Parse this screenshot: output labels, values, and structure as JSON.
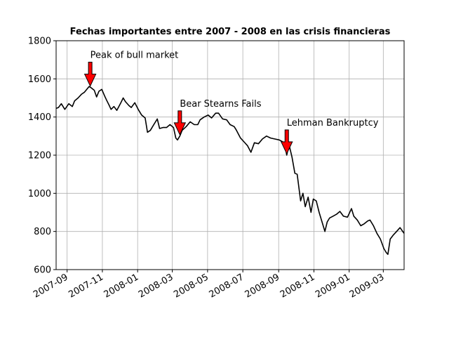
{
  "chart_data": {
    "type": "line",
    "title": "Fechas importantes entre 2007 - 2008 en las crisis financieras",
    "xlabel": "",
    "ylabel": "",
    "x_range": [
      "2007-08-13",
      "2009-04-06"
    ],
    "ylim": [
      600,
      1800
    ],
    "yticks": [
      600,
      800,
      1000,
      1200,
      1400,
      1600,
      1800
    ],
    "xticks": [
      {
        "date": "2007-09-01",
        "label": "2007-09"
      },
      {
        "date": "2007-11-01",
        "label": "2007-11"
      },
      {
        "date": "2008-01-01",
        "label": "2008-01"
      },
      {
        "date": "2008-03-01",
        "label": "2008-03"
      },
      {
        "date": "2008-05-01",
        "label": "2008-05"
      },
      {
        "date": "2008-07-01",
        "label": "2008-07"
      },
      {
        "date": "2008-09-01",
        "label": "2008-09"
      },
      {
        "date": "2008-11-01",
        "label": "2008-11"
      },
      {
        "date": "2009-01-01",
        "label": "2009-01"
      },
      {
        "date": "2009-03-01",
        "label": "2009-03"
      }
    ],
    "grid": true,
    "line_color": "#000000",
    "annotation_color": "#ff0000",
    "series": [
      {
        "name": "",
        "x": [
          "2007-08-13",
          "2007-08-17",
          "2007-08-22",
          "2007-08-28",
          "2007-09-04",
          "2007-09-10",
          "2007-09-14",
          "2007-09-20",
          "2007-09-26",
          "2007-10-01",
          "2007-10-05",
          "2007-10-09",
          "2007-10-12",
          "2007-10-18",
          "2007-10-22",
          "2007-10-26",
          "2007-10-31",
          "2007-11-05",
          "2007-11-08",
          "2007-11-13",
          "2007-11-16",
          "2007-11-21",
          "2007-11-26",
          "2007-12-03",
          "2007-12-07",
          "2007-12-11",
          "2007-12-17",
          "2007-12-21",
          "2007-12-27",
          "2008-01-02",
          "2008-01-08",
          "2008-01-14",
          "2008-01-18",
          "2008-01-23",
          "2008-01-29",
          "2008-02-04",
          "2008-02-08",
          "2008-02-14",
          "2008-02-20",
          "2008-02-26",
          "2008-03-03",
          "2008-03-07",
          "2008-03-10",
          "2008-03-14",
          "2008-03-18",
          "2008-03-25",
          "2008-04-01",
          "2008-04-08",
          "2008-04-14",
          "2008-04-18",
          "2008-04-25",
          "2008-05-02",
          "2008-05-08",
          "2008-05-15",
          "2008-05-20",
          "2008-05-27",
          "2008-06-03",
          "2008-06-09",
          "2008-06-16",
          "2008-06-20",
          "2008-06-27",
          "2008-07-03",
          "2008-07-09",
          "2008-07-15",
          "2008-07-21",
          "2008-07-28",
          "2008-08-04",
          "2008-08-11",
          "2008-08-18",
          "2008-08-25",
          "2008-09-02",
          "2008-09-08",
          "2008-09-12",
          "2008-09-15",
          "2008-09-19",
          "2008-09-24",
          "2008-09-29",
          "2008-10-03",
          "2008-10-09",
          "2008-10-13",
          "2008-10-17",
          "2008-10-22",
          "2008-10-27",
          "2008-10-31",
          "2008-11-05",
          "2008-11-10",
          "2008-11-14",
          "2008-11-20",
          "2008-11-24",
          "2008-11-28",
          "2008-12-04",
          "2008-12-10",
          "2008-12-16",
          "2008-12-22",
          "2008-12-29",
          "2009-01-05",
          "2009-01-09",
          "2009-01-15",
          "2009-01-21",
          "2009-01-27",
          "2009-02-02",
          "2009-02-06",
          "2009-02-12",
          "2009-02-18",
          "2009-02-24",
          "2009-03-02",
          "2009-03-06",
          "2009-03-09",
          "2009-03-13",
          "2009-03-18",
          "2009-03-24",
          "2009-03-30",
          "2009-04-06"
        ],
        "y": [
          1445,
          1450,
          1470,
          1440,
          1470,
          1455,
          1485,
          1500,
          1520,
          1530,
          1545,
          1560,
          1555,
          1540,
          1505,
          1535,
          1545,
          1510,
          1490,
          1460,
          1440,
          1455,
          1435,
          1475,
          1500,
          1480,
          1460,
          1450,
          1475,
          1440,
          1410,
          1395,
          1320,
          1330,
          1360,
          1390,
          1340,
          1345,
          1345,
          1360,
          1345,
          1290,
          1280,
          1300,
          1330,
          1350,
          1375,
          1360,
          1360,
          1385,
          1400,
          1410,
          1395,
          1420,
          1420,
          1390,
          1385,
          1360,
          1350,
          1330,
          1290,
          1270,
          1250,
          1215,
          1265,
          1260,
          1285,
          1300,
          1290,
          1285,
          1280,
          1270,
          1250,
          1200,
          1255,
          1190,
          1105,
          1100,
          960,
          1000,
          930,
          980,
          900,
          970,
          960,
          900,
          860,
          800,
          850,
          870,
          880,
          890,
          905,
          880,
          875,
          920,
          880,
          860,
          830,
          840,
          855,
          860,
          830,
          790,
          760,
          710,
          690,
          680,
          760,
          780,
          800,
          820,
          790
        ]
      }
    ],
    "annotations": [
      {
        "label": "Peak of bull market",
        "date": "2007-10-11",
        "value": 1555
      },
      {
        "label": "Bear Stearns Fails",
        "date": "2008-03-14",
        "value": 1300
      },
      {
        "label": "Lehman Bankruptcy",
        "date": "2008-09-15",
        "value": 1200
      }
    ]
  }
}
